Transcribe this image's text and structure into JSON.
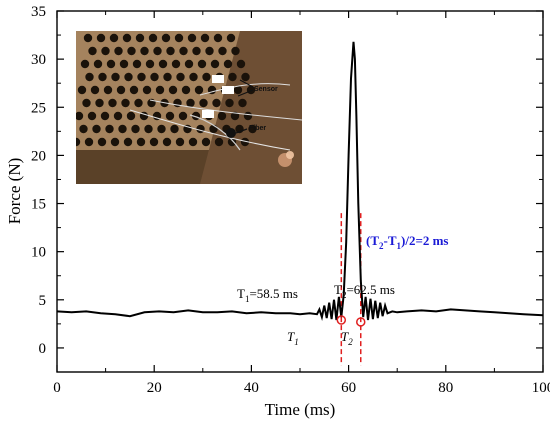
{
  "chart_data": {
    "type": "line",
    "xlabel": "Time (ms)",
    "ylabel": "Force (N)",
    "xlim": [
      0,
      100
    ],
    "ylim": [
      -2.5,
      35
    ],
    "xticks": [
      0,
      20,
      40,
      60,
      80,
      100
    ],
    "yticks": [
      0,
      5,
      10,
      15,
      20,
      25,
      30,
      35
    ],
    "grid": false,
    "series": [
      {
        "color": "#000000",
        "x": [
          0,
          3,
          6,
          9,
          12,
          15,
          18,
          21,
          24,
          27,
          30,
          33,
          36,
          39,
          42,
          45,
          48,
          50,
          52,
          53.5,
          54,
          54.5,
          55,
          55.5,
          56,
          56.5,
          57,
          57.5,
          58,
          58.5,
          59,
          59.5,
          60,
          60.5,
          61,
          61.3,
          61.6,
          62,
          62.5,
          63,
          63.5,
          64,
          64.5,
          65,
          65.5,
          66,
          66.5,
          67,
          67.5,
          68,
          69,
          70,
          72,
          75,
          78,
          81,
          84,
          87,
          90,
          93,
          96,
          100
        ],
        "y": [
          3.8,
          3.7,
          3.8,
          3.6,
          3.5,
          3.3,
          3.7,
          3.8,
          3.7,
          3.9,
          3.7,
          3.7,
          3.8,
          3.6,
          3.7,
          3.6,
          3.6,
          3.5,
          3.6,
          3.5,
          4.0,
          3.2,
          4.4,
          3.1,
          4.7,
          3.0,
          5.0,
          2.9,
          5.3,
          3.2,
          5.5,
          11.0,
          20.0,
          28.0,
          31.8,
          30.0,
          24.0,
          15.0,
          7.0,
          3.2,
          5.3,
          2.9,
          5.1,
          3.0,
          4.9,
          3.1,
          4.7,
          3.3,
          4.4,
          3.6,
          3.8,
          3.7,
          3.8,
          3.9,
          3.8,
          4.0,
          3.9,
          3.8,
          3.7,
          3.6,
          3.5,
          3.4
        ]
      }
    ],
    "markers": [
      {
        "x": 58.5,
        "y": 2.9,
        "label": "T1"
      },
      {
        "x": 62.5,
        "y": 2.7,
        "label": "T2"
      }
    ],
    "vlines": [
      58.5,
      62.5
    ],
    "vline_color": "#e02020",
    "annotations": {
      "t1": {
        "a": "T",
        "sub": "1",
        "b": "=58.5 ms"
      },
      "t2": {
        "a": "T",
        "sub": "2",
        "b": "=62.5 ms"
      },
      "t1_marker": {
        "a": "T",
        "sub": "1"
      },
      "t2_marker": {
        "a": "T",
        "sub": "2"
      },
      "delta": {
        "p1": "(T",
        "s1": "2",
        "p2": "-T",
        "s2": "1",
        "p3": ")/2=2 ms"
      }
    },
    "inset": {
      "sensor_label": "Sensor",
      "fiber_label": "Fiber"
    }
  }
}
